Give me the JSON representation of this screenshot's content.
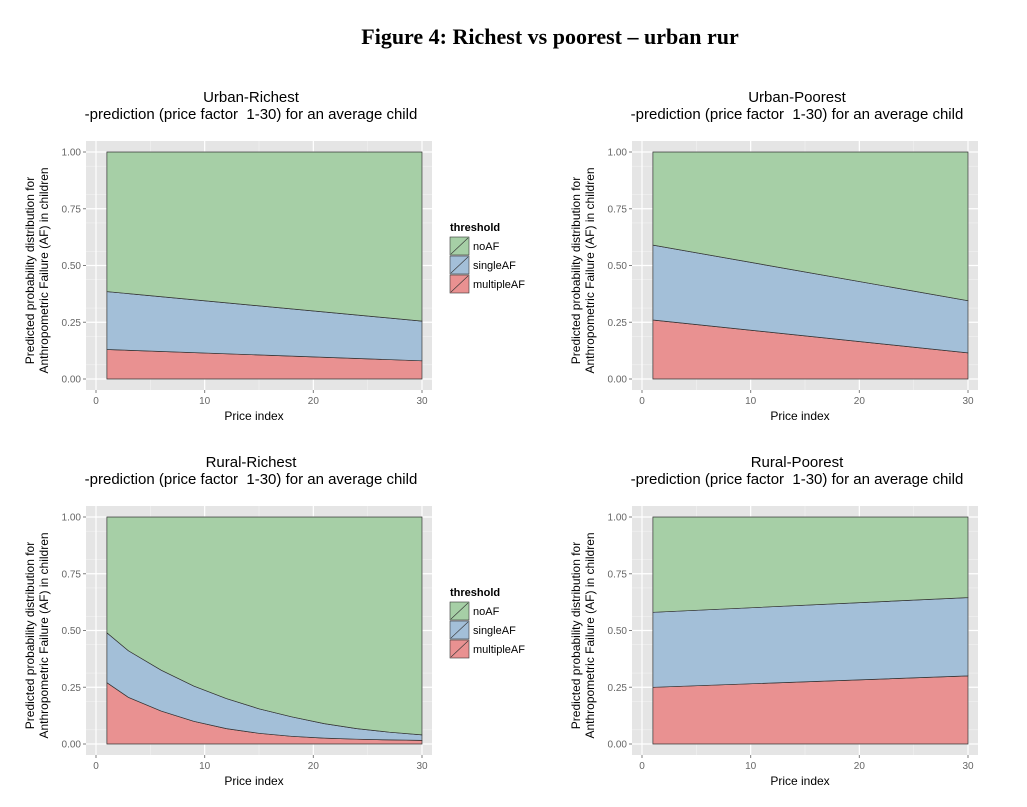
{
  "figure": {
    "title": "Figure 4: Richest vs poorest – urban rur"
  },
  "legend": {
    "title": "threshold",
    "items": [
      {
        "name": "noAF",
        "color": "#a6cfa6"
      },
      {
        "name": "singleAF",
        "color": "#a3bfd8"
      },
      {
        "name": "multipleAF",
        "color": "#e99191"
      }
    ]
  },
  "chart_data": [
    {
      "type": "area",
      "title": "Urban-Richest",
      "subtitle": "-prediction (price factor  1-30) for an average child",
      "xlabel": "Price index",
      "ylabel": "Predicted probability distribution for\nAnthropometric Failure (AF) in children",
      "xlim": [
        0,
        30
      ],
      "ylim": [
        0,
        1
      ],
      "xticks": [
        "0",
        "10",
        "20",
        "30"
      ],
      "yticks": [
        "0.00",
        "0.25",
        "0.50",
        "0.75",
        "1.00"
      ],
      "x": [
        1,
        30
      ],
      "series": [
        {
          "name": "multipleAF",
          "values": [
            0.13,
            0.08
          ]
        },
        {
          "name": "singleAF",
          "values": [
            0.255,
            0.175
          ]
        },
        {
          "name": "noAF",
          "values": [
            0.615,
            0.745
          ]
        }
      ],
      "legend": "right"
    },
    {
      "type": "area",
      "title": "Urban-Poorest",
      "subtitle": "-prediction (price factor  1-30) for an average child",
      "xlabel": "Price index",
      "ylabel": "Predicted probability distribution for\nAnthropometric Failure (AF) in children",
      "xlim": [
        0,
        30
      ],
      "ylim": [
        0,
        1
      ],
      "xticks": [
        "0",
        "10",
        "20",
        "30"
      ],
      "yticks": [
        "0.00",
        "0.25",
        "0.50",
        "0.75",
        "1.00"
      ],
      "x": [
        1,
        30
      ],
      "series": [
        {
          "name": "multipleAF",
          "values": [
            0.26,
            0.115
          ]
        },
        {
          "name": "singleAF",
          "values": [
            0.33,
            0.23
          ]
        },
        {
          "name": "noAF",
          "values": [
            0.41,
            0.655
          ]
        }
      ],
      "legend": "right"
    },
    {
      "type": "area",
      "title": "Rural-Richest",
      "subtitle": "-prediction (price factor  1-30) for an average child",
      "xlabel": "Price index",
      "ylabel": "Predicted probability distribution for\nAnthropometric Failure (AF) in children",
      "xlim": [
        0,
        30
      ],
      "ylim": [
        0,
        1
      ],
      "xticks": [
        "0",
        "10",
        "20",
        "30"
      ],
      "yticks": [
        "0.00",
        "0.25",
        "0.50",
        "0.75",
        "1.00"
      ],
      "x": [
        1,
        3,
        6,
        9,
        12,
        15,
        18,
        21,
        24,
        27,
        30
      ],
      "series": [
        {
          "name": "multipleAF",
          "values": [
            0.27,
            0.205,
            0.145,
            0.1,
            0.068,
            0.047,
            0.034,
            0.026,
            0.021,
            0.018,
            0.016
          ]
        },
        {
          "name": "singleAF",
          "values": [
            0.22,
            0.205,
            0.18,
            0.155,
            0.132,
            0.108,
            0.086,
            0.064,
            0.047,
            0.034,
            0.024
          ]
        },
        {
          "name": "noAF",
          "values": [
            0.51,
            0.59,
            0.675,
            0.745,
            0.8,
            0.845,
            0.88,
            0.91,
            0.932,
            0.948,
            0.96
          ]
        }
      ],
      "legend": "right"
    },
    {
      "type": "area",
      "title": "Rural-Poorest",
      "subtitle": "-prediction (price factor  1-30) for an average child",
      "xlabel": "Price index",
      "ylabel": "Predicted probability distribution for\nAnthropometric Failure (AF) in children",
      "xlim": [
        0,
        30
      ],
      "ylim": [
        0,
        1
      ],
      "xticks": [
        "0",
        "10",
        "20",
        "30"
      ],
      "yticks": [
        "0.00",
        "0.25",
        "0.50",
        "0.75",
        "1.00"
      ],
      "x": [
        1,
        30
      ],
      "series": [
        {
          "name": "multipleAF",
          "values": [
            0.25,
            0.3
          ]
        },
        {
          "name": "singleAF",
          "values": [
            0.33,
            0.345
          ]
        },
        {
          "name": "noAF",
          "values": [
            0.42,
            0.355
          ]
        }
      ],
      "legend": "right"
    }
  ]
}
